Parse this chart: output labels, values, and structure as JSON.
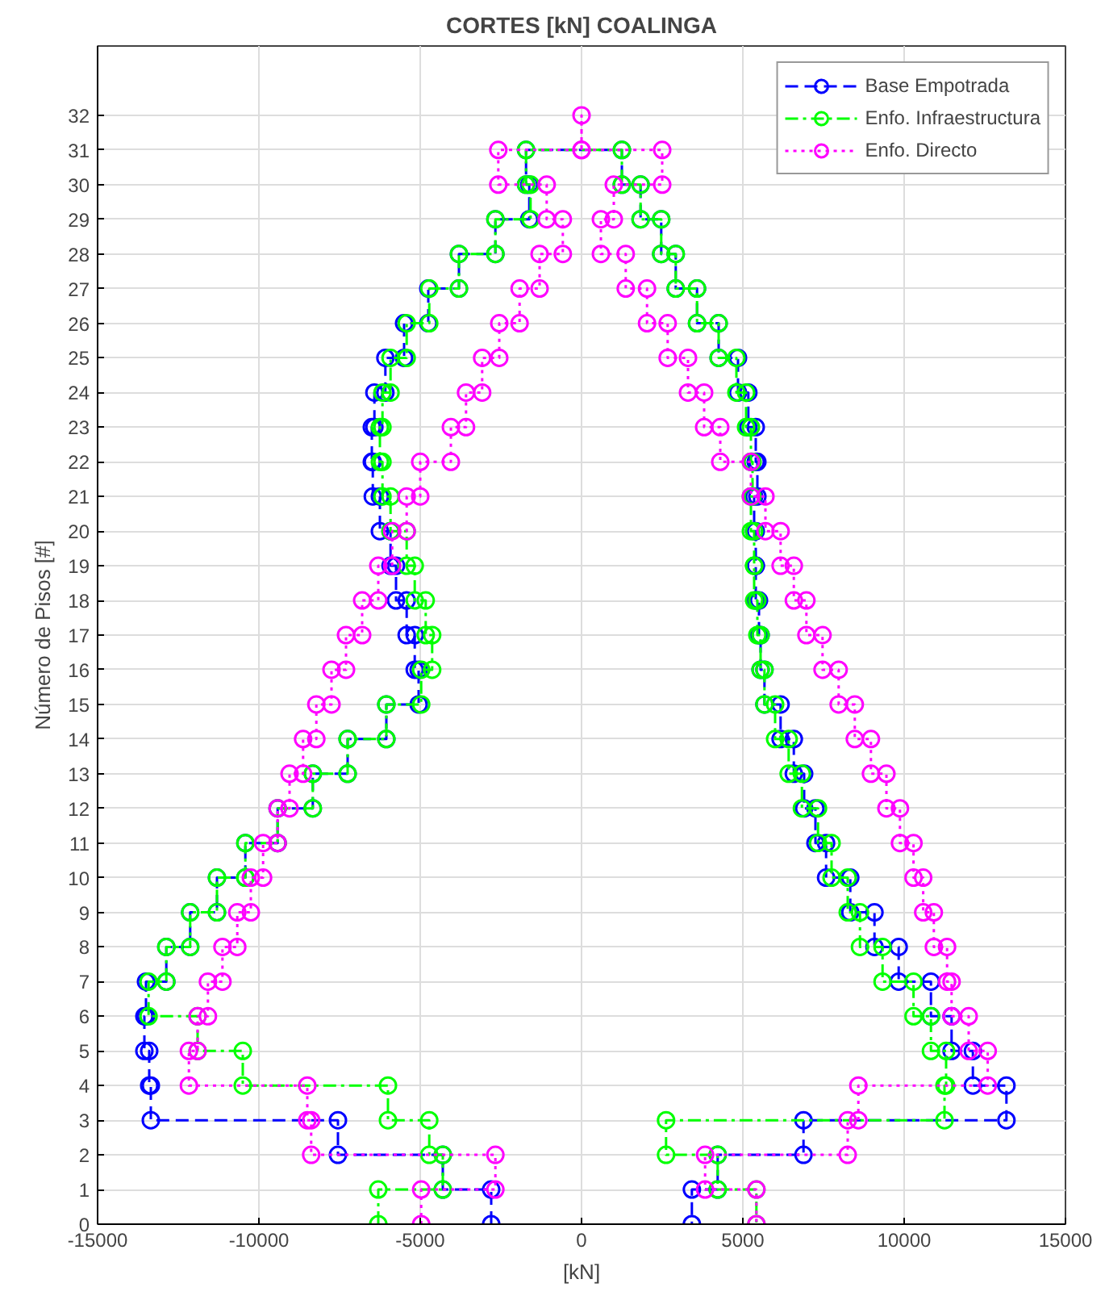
{
  "chart_data": {
    "type": "line",
    "title": "CORTES [kN] COALINGA",
    "xlabel": "[kN]",
    "ylabel": "Número de Pisos [#]",
    "xlim": [
      -15000,
      15000
    ],
    "xticks": [
      -15000,
      -10000,
      -5000,
      0,
      5000,
      10000,
      15000
    ],
    "ylim": [
      0,
      34
    ],
    "yticks": [
      0,
      1,
      2,
      3,
      4,
      5,
      6,
      7,
      8,
      9,
      10,
      11,
      12,
      13,
      14,
      15,
      16,
      17,
      18,
      19,
      20,
      21,
      22,
      23,
      24,
      25,
      26,
      27,
      28,
      29,
      30,
      31,
      32
    ],
    "grid": true,
    "legend": "top right",
    "marker": "circle",
    "series": [
      {
        "name": "Base Empotrada",
        "color": "#0000ff",
        "line_style": "dashed",
        "x": [
          -2800,
          -2800,
          -4300,
          -4300,
          -7550,
          -7550,
          -13350,
          -13350,
          -13400,
          -13400,
          -13550,
          -13550,
          -13500,
          -13500,
          -12870,
          -12870,
          -12130,
          -12130,
          -11300,
          -11300,
          -10420,
          -10420,
          -9420,
          -9420,
          -8330,
          -8330,
          -7250,
          -7250,
          -6050,
          -6050,
          -5050,
          -5050,
          -5170,
          -5170,
          -5420,
          -5420,
          -5750,
          -5750,
          -5920,
          -5920,
          -6250,
          -6250,
          -6470,
          -6470,
          -6500,
          -6500,
          -6420,
          -6420,
          -6080,
          -6080,
          -5500,
          -5500,
          -4750,
          -4750,
          -3800,
          -3800,
          -2670,
          -2670,
          -1620,
          -1620,
          -1720,
          -1720,
          1250,
          1250,
          1830,
          1830,
          2470,
          2470,
          2920,
          2920,
          3580,
          3580,
          4250,
          4250,
          4850,
          4850,
          5170,
          5170,
          5400,
          5400,
          5450,
          5450,
          5350,
          5350,
          5400,
          5400,
          5400,
          5400,
          5500,
          5500,
          5550,
          5550,
          5670,
          5670,
          6170,
          6170,
          6580,
          6580,
          6900,
          6900,
          7250,
          7250,
          7580,
          7580,
          8330,
          8330,
          9080,
          9080,
          9830,
          9830,
          10830,
          10830,
          11470,
          11470,
          12130,
          12130,
          13170,
          13170,
          6880,
          6880,
          4220,
          4220,
          3420,
          3420
        ],
        "values": [
          0,
          1,
          1,
          2,
          2,
          3,
          3,
          4,
          4,
          5,
          5,
          6,
          6,
          7,
          7,
          8,
          8,
          9,
          9,
          10,
          10,
          11,
          11,
          12,
          12,
          13,
          13,
          14,
          14,
          15,
          15,
          16,
          16,
          17,
          17,
          18,
          18,
          19,
          19,
          20,
          20,
          21,
          21,
          22,
          22,
          23,
          23,
          24,
          24,
          25,
          25,
          26,
          26,
          27,
          27,
          28,
          28,
          29,
          29,
          30,
          30,
          31,
          31,
          30,
          30,
          29,
          29,
          28,
          28,
          27,
          27,
          26,
          26,
          25,
          25,
          24,
          24,
          23,
          23,
          22,
          22,
          21,
          21,
          20,
          20,
          19,
          19,
          18,
          18,
          17,
          17,
          16,
          16,
          15,
          15,
          14,
          14,
          13,
          13,
          12,
          12,
          11,
          11,
          10,
          10,
          9,
          9,
          8,
          8,
          7,
          7,
          6,
          6,
          5,
          5,
          4,
          4,
          3,
          3,
          2,
          2,
          1,
          1,
          0
        ]
      },
      {
        "name": "Enfo. Infraestructura",
        "color": "#00ff00",
        "line_style": "dashdot",
        "x": [
          -6300,
          -6300,
          -4300,
          -4300,
          -4720,
          -4720,
          -6000,
          -6000,
          -10500,
          -10500,
          -11900,
          -11900,
          -13420,
          -13420,
          -12870,
          -12870,
          -12130,
          -12130,
          -11300,
          -11300,
          -10420,
          -10420,
          -9420,
          -9420,
          -8330,
          -8330,
          -7250,
          -7250,
          -6050,
          -6050,
          -4970,
          -4970,
          -4630,
          -4630,
          -4830,
          -4830,
          -5170,
          -5170,
          -5420,
          -5420,
          -5920,
          -5920,
          -6170,
          -6170,
          -6250,
          -6250,
          -6170,
          -6170,
          -5920,
          -5920,
          -5420,
          -5420,
          -4720,
          -4720,
          -3800,
          -3800,
          -2670,
          -2670,
          -1580,
          -1580,
          -1720,
          -1720,
          1250,
          1250,
          1830,
          1830,
          2470,
          2470,
          2920,
          2920,
          3580,
          3580,
          4250,
          4250,
          4800,
          4800,
          5100,
          5100,
          5250,
          5250,
          5300,
          5300,
          5250,
          5250,
          5350,
          5350,
          5350,
          5350,
          5450,
          5450,
          5550,
          5550,
          5670,
          5670,
          6000,
          6000,
          6420,
          6420,
          6830,
          6830,
          7330,
          7330,
          7750,
          7750,
          8250,
          8250,
          8630,
          8630,
          9330,
          9330,
          10290,
          10290,
          10830,
          10830,
          11300,
          11300,
          11250,
          11250,
          2620,
          2620,
          4220,
          4220,
          5420,
          5420
        ],
        "values": [
          0,
          1,
          1,
          2,
          2,
          3,
          3,
          4,
          4,
          5,
          5,
          6,
          6,
          7,
          7,
          8,
          8,
          9,
          9,
          10,
          10,
          11,
          11,
          12,
          12,
          13,
          13,
          14,
          14,
          15,
          15,
          16,
          16,
          17,
          17,
          18,
          18,
          19,
          19,
          20,
          20,
          21,
          21,
          22,
          22,
          23,
          23,
          24,
          24,
          25,
          25,
          26,
          26,
          27,
          27,
          28,
          28,
          29,
          29,
          30,
          30,
          31,
          31,
          30,
          30,
          29,
          29,
          28,
          28,
          27,
          27,
          26,
          26,
          25,
          25,
          24,
          24,
          23,
          23,
          22,
          22,
          21,
          21,
          20,
          20,
          19,
          19,
          18,
          18,
          17,
          17,
          16,
          16,
          15,
          15,
          14,
          14,
          13,
          13,
          12,
          12,
          11,
          11,
          10,
          10,
          9,
          9,
          8,
          8,
          7,
          7,
          6,
          6,
          5,
          5,
          4,
          4,
          3,
          3,
          2,
          2,
          1,
          1,
          0
        ]
      },
      {
        "name": "Enfo. Directo",
        "color": "#ff00ff",
        "line_style": "dotted",
        "x": [
          -4970,
          -4970,
          -2670,
          -2670,
          -8380,
          -8380,
          -8500,
          -8500,
          -12170,
          -12170,
          -11900,
          -11900,
          -11580,
          -11580,
          -11130,
          -11130,
          -10670,
          -10670,
          -10250,
          -10250,
          -9870,
          -9870,
          -9420,
          -9420,
          -9050,
          -9050,
          -8630,
          -8630,
          -8220,
          -8220,
          -7750,
          -7750,
          -7300,
          -7300,
          -6800,
          -6800,
          -6300,
          -6300,
          -5870,
          -5870,
          -5420,
          -5420,
          -5000,
          -5000,
          -4050,
          -4050,
          -3580,
          -3580,
          -3080,
          -3080,
          -2550,
          -2550,
          -1920,
          -1920,
          -1300,
          -1300,
          -580,
          -580,
          -1080,
          -1080,
          -2580,
          -2580,
          0,
          0,
          0,
          2500,
          2500,
          1000,
          1000,
          600,
          600,
          1370,
          1370,
          2030,
          2030,
          2670,
          2670,
          3300,
          3300,
          3800,
          3800,
          4300,
          4300,
          5250,
          5250,
          5700,
          5700,
          6170,
          6170,
          6580,
          6580,
          6970,
          6970,
          7470,
          7470,
          7970,
          7970,
          8470,
          8470,
          8970,
          8970,
          9450,
          9450,
          9870,
          9870,
          10290,
          10290,
          10590,
          10590,
          10920,
          10920,
          11330,
          11330,
          11470,
          11470,
          12000,
          12000,
          12590,
          12590,
          8580,
          8580,
          8250,
          8250,
          3830,
          3830,
          5420,
          5420
        ],
        "values": [
          0,
          1,
          1,
          2,
          2,
          3,
          3,
          4,
          4,
          5,
          5,
          6,
          6,
          7,
          7,
          8,
          8,
          9,
          9,
          10,
          10,
          11,
          11,
          12,
          12,
          13,
          13,
          14,
          14,
          15,
          15,
          16,
          16,
          17,
          17,
          18,
          18,
          19,
          19,
          20,
          20,
          21,
          21,
          22,
          22,
          23,
          23,
          24,
          24,
          25,
          25,
          26,
          26,
          27,
          27,
          28,
          28,
          29,
          29,
          30,
          30,
          31,
          31,
          32,
          31,
          31,
          30,
          30,
          29,
          29,
          28,
          28,
          27,
          27,
          26,
          26,
          25,
          25,
          24,
          24,
          23,
          23,
          22,
          22,
          21,
          21,
          20,
          20,
          19,
          19,
          18,
          18,
          17,
          17,
          16,
          16,
          15,
          15,
          14,
          14,
          13,
          13,
          12,
          12,
          11,
          11,
          10,
          10,
          9,
          9,
          8,
          8,
          7,
          7,
          6,
          6,
          5,
          5,
          4,
          4,
          3,
          3,
          2,
          2,
          1,
          1,
          0
        ]
      }
    ]
  }
}
